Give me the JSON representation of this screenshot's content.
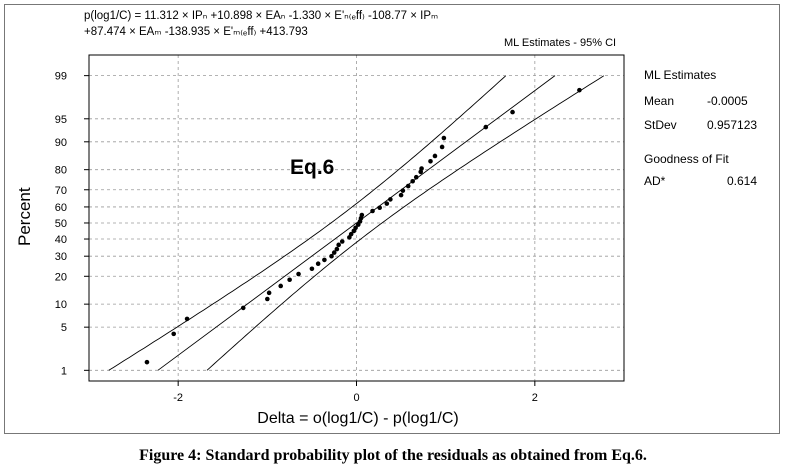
{
  "header": {
    "equation_line1": "p(log1/C) = 11.312 × IPₙ +10.898 × EAₙ -1.330 × E'ₙ₍ₑff₎ -108.77 × IPₘ",
    "equation_line2": "+87.474 × EAₘ -138.935 × E'ₘ₍ₑff₎ +413.793",
    "ci_note": "ML Estimates - 95% CI"
  },
  "plot_annotation": "Eq.6",
  "stats": {
    "ml_heading": "ML Estimates",
    "mean_label": "Mean",
    "mean_value": "-0.0005",
    "stdev_label": "StDev",
    "stdev_value": "0.957123",
    "gof_heading": "Goodness of Fit",
    "ad_label": "AD*",
    "ad_value": "0.614"
  },
  "caption": "Figure 4: Standard probability plot of the residuals as obtained from Eq.6.",
  "chart_data": {
    "type": "scatter",
    "scale": "normal-probability",
    "xlabel": "Delta = o(log1/C) - p(log1/C)",
    "ylabel": "Percent",
    "xlim": [
      -3.0,
      3.0
    ],
    "x_ticks": [
      -2,
      0,
      2
    ],
    "y_ticks": [
      1,
      5,
      10,
      20,
      30,
      40,
      50,
      60,
      70,
      80,
      90,
      95,
      99
    ],
    "ylim_percent": [
      0.63,
      99.6
    ],
    "grid": true,
    "grid_style": "dashed",
    "fit": {
      "mean": -0.0005,
      "stdev": 0.957123
    },
    "confidence_band": "95% CI",
    "points": [
      {
        "x": -2.35,
        "y": 1.4
      },
      {
        "x": -2.05,
        "y": 4.0
      },
      {
        "x": -1.9,
        "y": 6.5
      },
      {
        "x": -1.27,
        "y": 9.0
      },
      {
        "x": -1.0,
        "y": 11.5
      },
      {
        "x": -0.98,
        "y": 13.5
      },
      {
        "x": -0.85,
        "y": 16.0
      },
      {
        "x": -0.75,
        "y": 18.5
      },
      {
        "x": -0.65,
        "y": 21.0
      },
      {
        "x": -0.5,
        "y": 23.5
      },
      {
        "x": -0.43,
        "y": 26.0
      },
      {
        "x": -0.36,
        "y": 28.0
      },
      {
        "x": -0.28,
        "y": 30.0
      },
      {
        "x": -0.25,
        "y": 32.0
      },
      {
        "x": -0.22,
        "y": 34.0
      },
      {
        "x": -0.2,
        "y": 36.5
      },
      {
        "x": -0.16,
        "y": 38.5
      },
      {
        "x": -0.08,
        "y": 41.0
      },
      {
        "x": -0.06,
        "y": 43.0
      },
      {
        "x": -0.03,
        "y": 45.0
      },
      {
        "x": -0.01,
        "y": 47.0
      },
      {
        "x": 0.02,
        "y": 49.0
      },
      {
        "x": 0.04,
        "y": 51.0
      },
      {
        "x": 0.05,
        "y": 53.0
      },
      {
        "x": 0.06,
        "y": 55.0
      },
      {
        "x": 0.18,
        "y": 57.5
      },
      {
        "x": 0.26,
        "y": 59.5
      },
      {
        "x": 0.34,
        "y": 62.0
      },
      {
        "x": 0.38,
        "y": 64.5
      },
      {
        "x": 0.5,
        "y": 67.0
      },
      {
        "x": 0.52,
        "y": 69.5
      },
      {
        "x": 0.58,
        "y": 72.0
      },
      {
        "x": 0.63,
        "y": 74.5
      },
      {
        "x": 0.67,
        "y": 76.5
      },
      {
        "x": 0.72,
        "y": 79.0
      },
      {
        "x": 0.73,
        "y": 80.5
      },
      {
        "x": 0.83,
        "y": 83.5
      },
      {
        "x": 0.88,
        "y": 85.5
      },
      {
        "x": 0.96,
        "y": 88.5
      },
      {
        "x": 0.98,
        "y": 91.0
      },
      {
        "x": 1.45,
        "y": 93.5
      },
      {
        "x": 1.75,
        "y": 96.0
      },
      {
        "x": 2.5,
        "y": 98.2
      }
    ]
  }
}
